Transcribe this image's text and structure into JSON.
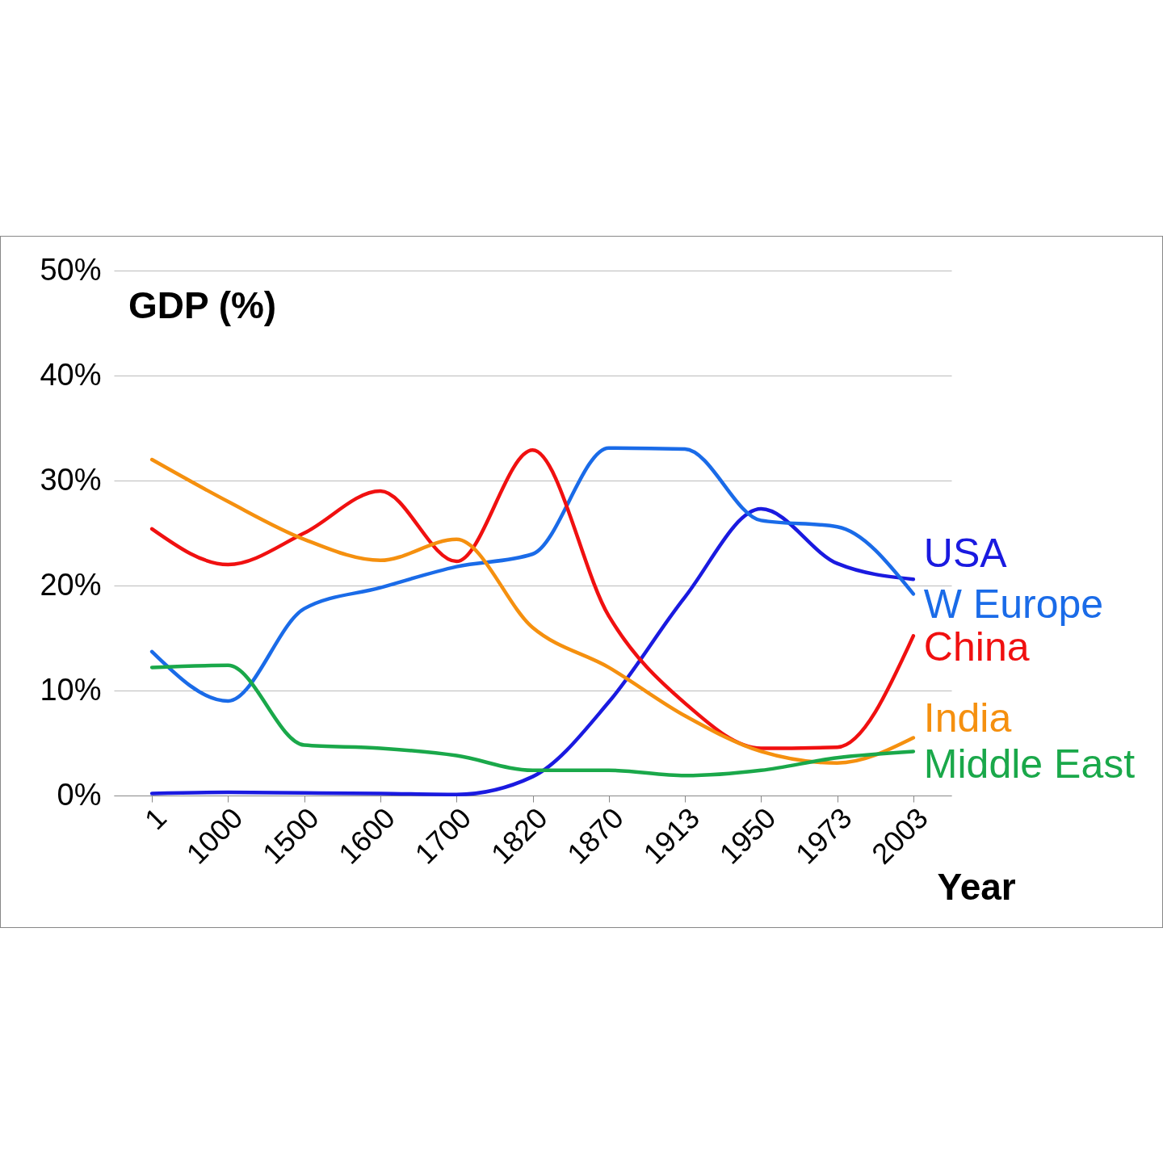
{
  "chart_data": {
    "type": "line",
    "title": "GDP (%)",
    "xlabel": "Year",
    "categories": [
      "1",
      "1000",
      "1500",
      "1600",
      "1700",
      "1820",
      "1870",
      "1913",
      "1950",
      "1973",
      "2003"
    ],
    "series": [
      {
        "name": "USA",
        "color": "#1a1ae0",
        "values": [
          0.2,
          0.3,
          0.25,
          0.2,
          0.1,
          1.8,
          8.9,
          18.9,
          27.3,
          22.1,
          20.6
        ]
      },
      {
        "name": "W Europe",
        "color": "#1a6be8",
        "values": [
          13.7,
          9.0,
          17.8,
          19.8,
          21.8,
          23.0,
          33.1,
          33.0,
          26.2,
          25.6,
          19.2
        ]
      },
      {
        "name": "China",
        "color": "#f01010",
        "values": [
          25.4,
          22.0,
          25.0,
          29.0,
          22.3,
          32.9,
          17.1,
          8.8,
          4.5,
          4.6,
          15.2
        ]
      },
      {
        "name": "India",
        "color": "#f5900f",
        "values": [
          32.0,
          28.0,
          24.4,
          22.4,
          24.4,
          16.0,
          12.2,
          7.6,
          4.2,
          3.1,
          5.5
        ]
      },
      {
        "name": "Middle East",
        "color": "#1aa84a",
        "values": [
          12.2,
          12.4,
          4.8,
          4.5,
          3.8,
          2.4,
          2.4,
          1.9,
          2.4,
          3.6,
          4.2
        ]
      }
    ],
    "ylim": [
      0,
      50
    ],
    "yticks": [
      {
        "value": 0,
        "label": "0%"
      },
      {
        "value": 10,
        "label": "10%"
      },
      {
        "value": 20,
        "label": "20%"
      },
      {
        "value": 30,
        "label": "30%"
      },
      {
        "value": 40,
        "label": "40%"
      },
      {
        "value": 50,
        "label": "50%"
      }
    ],
    "grid": "y",
    "marker": "none",
    "line_style": "solid"
  }
}
